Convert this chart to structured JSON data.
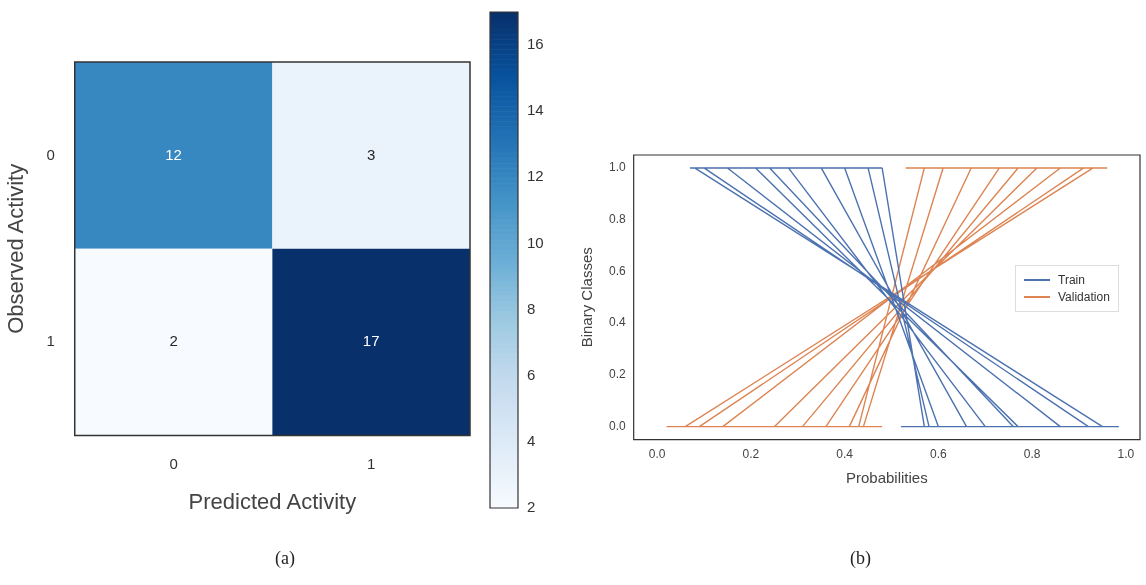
{
  "chart_data": [
    {
      "type": "heatmap",
      "xlabel": "Predicted Activity",
      "ylabel": "Observed Activity",
      "categories": [
        "0",
        "1"
      ],
      "y_categories": [
        "0",
        "1"
      ],
      "cells": [
        [
          12,
          3
        ],
        [
          2,
          17
        ]
      ],
      "data_labels": true,
      "clim": [
        2,
        17
      ],
      "cticks": [
        2,
        4,
        6,
        8,
        10,
        12,
        14,
        16
      ],
      "annotations": [
        "(a)"
      ]
    },
    {
      "type": "line",
      "xlabel": "Probabilities",
      "ylabel": "Binary Classes",
      "legend": "right",
      "xlim": [
        -0.05,
        1.03
      ],
      "ylim": [
        -0.05,
        1.05
      ],
      "xticks": [
        {
          "value": 0,
          "label": "0.0"
        },
        {
          "value": 0.2,
          "label": "0.2"
        },
        {
          "value": 0.4,
          "label": "0.4"
        },
        {
          "value": 0.6,
          "label": "0.6"
        },
        {
          "value": 0.8,
          "label": "0.8"
        },
        {
          "value": 1,
          "label": "1.0"
        }
      ],
      "yticks": [
        {
          "value": 0,
          "label": "0.0"
        },
        {
          "value": 0.2,
          "label": "0.2"
        },
        {
          "value": 0.4,
          "label": "0.4"
        },
        {
          "value": 0.6,
          "label": "0.6"
        },
        {
          "value": 0.8,
          "label": "0.8"
        },
        {
          "value": 1,
          "label": "1.0"
        }
      ],
      "series": [
        {
          "name": "Train",
          "color": "#4c72b0",
          "x": [
            0.07,
            0.48,
            null,
            0.52,
            0.985,
            null,
            0.08,
            0.95,
            null,
            0.1,
            0.92,
            null,
            0.15,
            0.86,
            null,
            0.21,
            0.77,
            null,
            0.24,
            0.76,
            null,
            0.28,
            0.7,
            null,
            0.35,
            0.66,
            null,
            0.4,
            0.6,
            null,
            0.45,
            0.58,
            null,
            0.48,
            0.57
          ],
          "values": [
            1,
            1,
            null,
            0,
            0,
            null,
            1,
            0,
            null,
            1,
            0,
            null,
            1,
            0,
            null,
            1,
            0,
            null,
            1,
            0,
            null,
            1,
            0,
            null,
            1,
            0,
            null,
            1,
            0,
            null,
            1,
            0,
            null,
            1,
            0
          ]
        },
        {
          "name": "Validation",
          "color": "#dd8452",
          "x": [
            0.02,
            0.48,
            null,
            0.53,
            0.96,
            null,
            0.06,
            0.93,
            null,
            0.09,
            0.91,
            null,
            0.14,
            0.86,
            null,
            0.25,
            0.81,
            null,
            0.31,
            0.77,
            null,
            0.36,
            0.73,
            null,
            0.41,
            0.67,
            null,
            0.44,
            0.61,
            null,
            0.43,
            0.57
          ],
          "values": [
            0,
            0,
            null,
            1,
            1,
            null,
            0,
            1,
            null,
            0,
            1,
            null,
            0,
            1,
            null,
            0,
            1,
            null,
            0,
            1,
            null,
            0,
            1,
            null,
            0,
            1,
            null,
            0,
            1,
            null,
            0,
            1
          ]
        }
      ],
      "annotations": [
        "(b)"
      ]
    }
  ]
}
